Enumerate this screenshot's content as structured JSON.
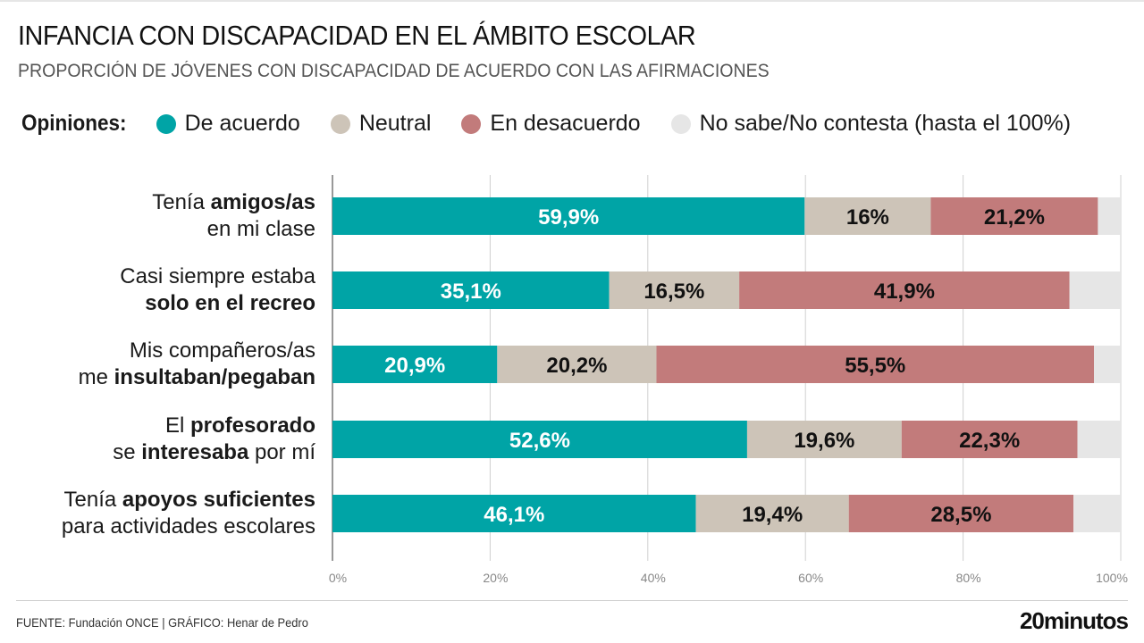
{
  "header": {
    "title": "INFANCIA CON DISCAPACIDAD EN EL ÁMBITO ESCOLAR",
    "subtitle": "PROPORCIÓN DE JÓVENES CON DISCAPACIDAD DE ACUERDO CON LAS AFIRMACIONES"
  },
  "legend": {
    "title": "Opiniones:",
    "items": [
      {
        "label": "De acuerdo",
        "color": "#00a4a6"
      },
      {
        "label": "Neutral",
        "color": "#cdc4b8"
      },
      {
        "label": "En desacuerdo",
        "color": "#c27b7b"
      },
      {
        "label": "No sabe/No contesta (hasta el 100%)",
        "color": "#e6e6e6"
      }
    ]
  },
  "rows": [
    {
      "line1": [
        {
          "t": "Tenía ",
          "b": false
        },
        {
          "t": "amigos/as",
          "b": true
        }
      ],
      "line2": [
        {
          "t": "en mi clase",
          "b": false
        }
      ]
    },
    {
      "line1": [
        {
          "t": "Casi siempre estaba",
          "b": false
        }
      ],
      "line2": [
        {
          "t": "solo en el recreo",
          "b": true
        }
      ]
    },
    {
      "line1": [
        {
          "t": "Mis compañeros/as",
          "b": false
        }
      ],
      "line2": [
        {
          "t": "me ",
          "b": false
        },
        {
          "t": "insultaban/pegaban",
          "b": true
        }
      ]
    },
    {
      "line1": [
        {
          "t": "El ",
          "b": false
        },
        {
          "t": "profesorado",
          "b": true
        }
      ],
      "line2": [
        {
          "t": "se ",
          "b": false
        },
        {
          "t": "interesaba",
          "b": true
        },
        {
          "t": " por mí",
          "b": false
        }
      ]
    },
    {
      "line1": [
        {
          "t": "Tenía ",
          "b": false
        },
        {
          "t": "apoyos suficientes",
          "b": true
        }
      ],
      "line2": [
        {
          "t": "para actividades escolares",
          "b": false
        }
      ]
    }
  ],
  "chart_data": {
    "type": "bar",
    "orientation": "horizontal",
    "stacked": true,
    "title": "INFANCIA CON DISCAPACIDAD EN EL ÁMBITO ESCOLAR",
    "subtitle": "PROPORCIÓN DE JÓVENES CON DISCAPACIDAD DE ACUERDO CON LAS AFIRMACIONES",
    "categories": [
      "Tenía amigos/as en mi clase",
      "Casi siempre estaba solo en el recreo",
      "Mis compañeros/as me insultaban/pegaban",
      "El profesorado se interesaba por mí",
      "Tenía apoyos suficientes para actividades escolares"
    ],
    "series": [
      {
        "name": "De acuerdo",
        "values": [
          59.9,
          35.1,
          20.9,
          52.6,
          46.1
        ],
        "labels": [
          "59,9%",
          "35,1%",
          "20,9%",
          "52,6%",
          "46,1%"
        ]
      },
      {
        "name": "Neutral",
        "values": [
          16,
          16.5,
          20.2,
          19.6,
          19.4
        ],
        "labels": [
          "16%",
          "16,5%",
          "20,2%",
          "19,6%",
          "19,4%"
        ]
      },
      {
        "name": "En desacuerdo",
        "values": [
          21.2,
          41.9,
          55.5,
          22.3,
          28.5
        ],
        "labels": [
          "21,2%",
          "41,9%",
          "55,5%",
          "22,3%",
          "28,5%"
        ]
      },
      {
        "name": "No sabe/No contesta (hasta el 100%)",
        "values": [
          2.9,
          6.5,
          3.4,
          5.5,
          6.0
        ],
        "labels": [
          "",
          "",
          "",
          "",
          ""
        ]
      }
    ],
    "xlim": [
      0,
      100
    ],
    "xticks": [
      "0%",
      "20%",
      "40%",
      "60%",
      "80%",
      "100%"
    ],
    "xtick_values": [
      0,
      20,
      40,
      60,
      80,
      100
    ],
    "grid": true,
    "legend": "top"
  },
  "footer": {
    "source": "FUENTE: Fundación ONCE  |  GRÁFICO: Henar de Pedro",
    "brand": "20minutos"
  }
}
